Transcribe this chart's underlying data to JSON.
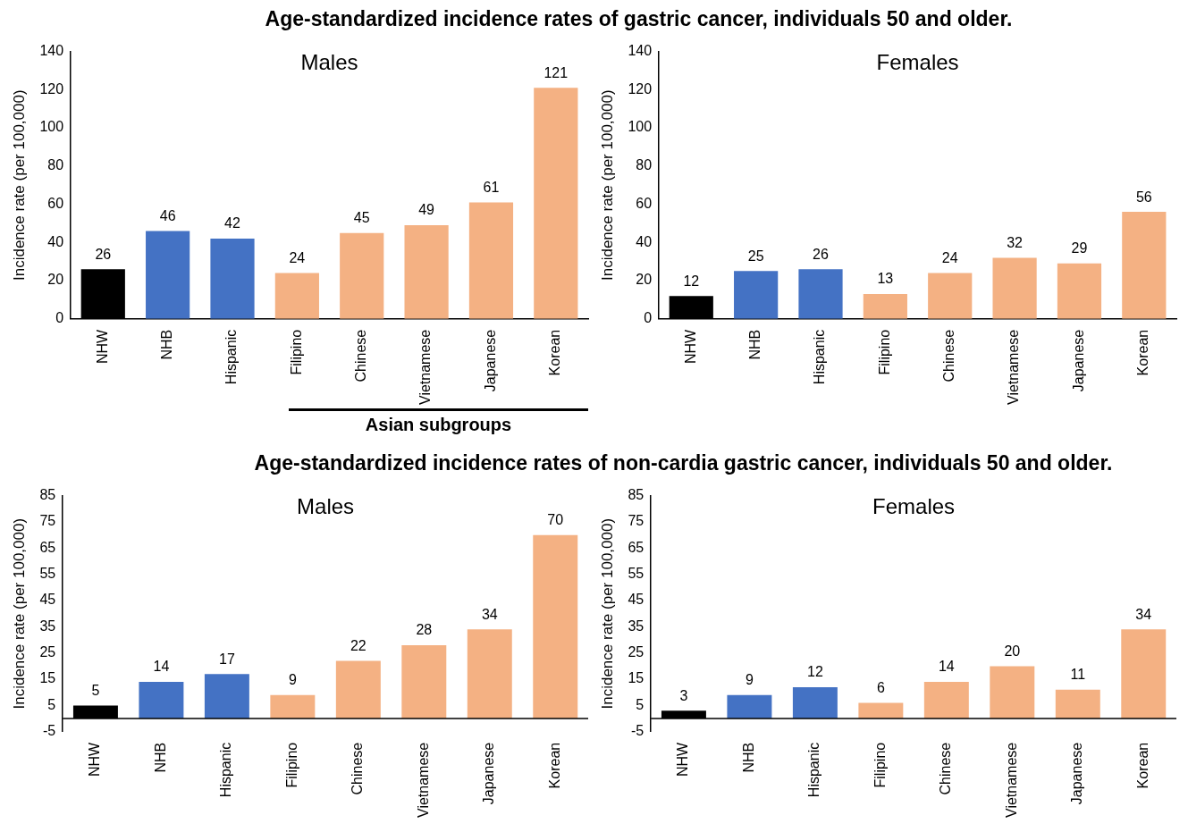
{
  "chart_data": [
    {
      "type": "bar",
      "title": "Age-standardized incidence rates of gastric cancer, individuals 50 and older.",
      "subtitle": "Males",
      "ylabel": "Incidence rate (per 100,000)",
      "categories": [
        "NHW",
        "NHB",
        "Hispanic",
        "Filipino",
        "Chinese",
        "Vietnamese",
        "Japanese",
        "Korean"
      ],
      "values": [
        26,
        46,
        42,
        24,
        45,
        49,
        61,
        121
      ],
      "colors": [
        "#000000",
        "#4472c4",
        "#4472c4",
        "#f4b183",
        "#f4b183",
        "#f4b183",
        "#f4b183",
        "#f4b183"
      ],
      "ylim": [
        0,
        140
      ],
      "yticks": [
        0,
        20,
        40,
        60,
        80,
        100,
        120,
        140
      ],
      "data_labels": true,
      "legend": false,
      "annotations": [
        "Asian subgroups"
      ]
    },
    {
      "type": "bar",
      "subtitle": "Females",
      "ylabel": "Incidence rate (per 100,000)",
      "categories": [
        "NHW",
        "NHB",
        "Hispanic",
        "Filipino",
        "Chinese",
        "Vietnamese",
        "Japanese",
        "Korean"
      ],
      "values": [
        12,
        25,
        26,
        13,
        24,
        32,
        29,
        56
      ],
      "colors": [
        "#000000",
        "#4472c4",
        "#4472c4",
        "#f4b183",
        "#f4b183",
        "#f4b183",
        "#f4b183",
        "#f4b183"
      ],
      "ylim": [
        0,
        140
      ],
      "yticks": [
        0,
        20,
        40,
        60,
        80,
        100,
        120,
        140
      ],
      "data_labels": true,
      "legend": false
    },
    {
      "type": "bar",
      "title": "Age-standardized incidence rates of non-cardia gastric cancer, individuals 50 and older.",
      "subtitle": "Males",
      "ylabel": "Incidence rate (per 100,000)",
      "categories": [
        "NHW",
        "NHB",
        "Hispanic",
        "Filipino",
        "Chinese",
        "Vietnamese",
        "Japanese",
        "Korean"
      ],
      "values": [
        5,
        14,
        17,
        9,
        22,
        28,
        34,
        70
      ],
      "colors": [
        "#000000",
        "#4472c4",
        "#4472c4",
        "#f4b183",
        "#f4b183",
        "#f4b183",
        "#f4b183",
        "#f4b183"
      ],
      "ylim": [
        -5,
        85
      ],
      "yticks": [
        -5,
        5,
        15,
        25,
        35,
        45,
        55,
        65,
        75,
        85
      ],
      "data_labels": true,
      "legend": false
    },
    {
      "type": "bar",
      "subtitle": "Females",
      "ylabel": "Incidence rate (per 100,000)",
      "categories": [
        "NHW",
        "NHB",
        "Hispanic",
        "Filipino",
        "Chinese",
        "Vietnamese",
        "Japanese",
        "Korean"
      ],
      "values": [
        3,
        9,
        12,
        6,
        14,
        20,
        11,
        34
      ],
      "colors": [
        "#000000",
        "#4472c4",
        "#4472c4",
        "#f4b183",
        "#f4b183",
        "#f4b183",
        "#f4b183",
        "#f4b183"
      ],
      "ylim": [
        -5,
        85
      ],
      "yticks": [
        -5,
        5,
        15,
        25,
        35,
        45,
        55,
        65,
        75,
        85
      ],
      "data_labels": true,
      "legend": false
    }
  ]
}
